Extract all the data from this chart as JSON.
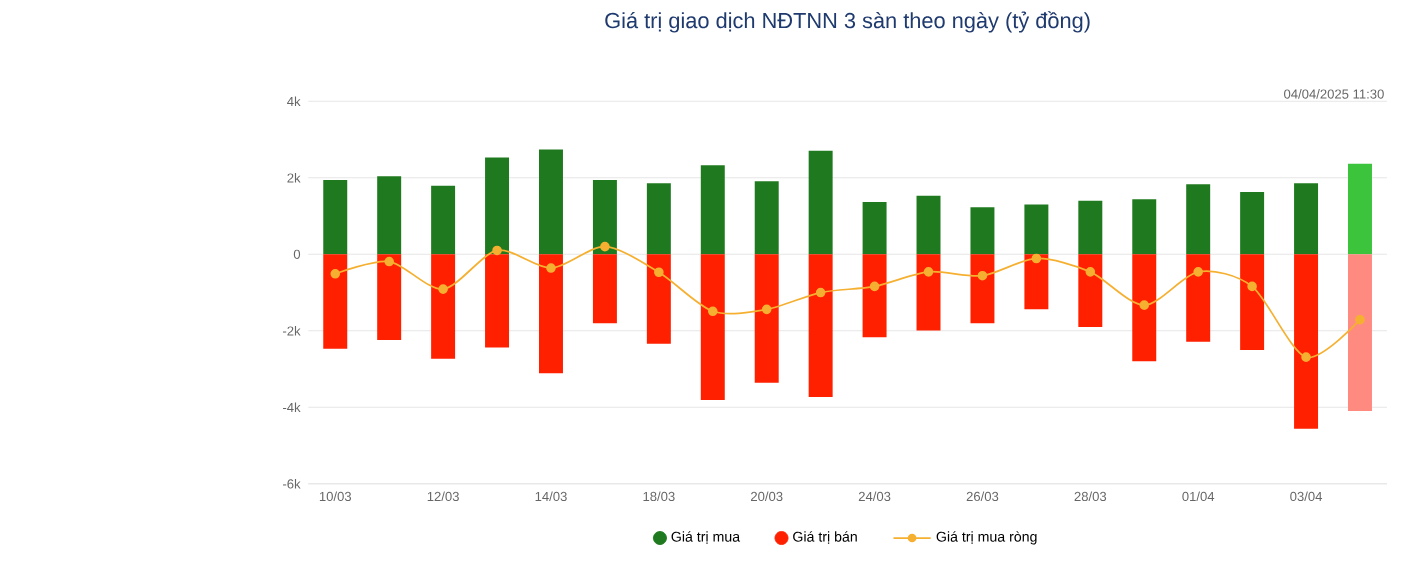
{
  "chart_data": {
    "type": "bar",
    "title": "Giá trị giao dịch NĐTNN 3 sàn theo ngày (tỷ đồng)",
    "annotations": [
      "04/04/2025 11:30"
    ],
    "categories": [
      "10/03",
      null,
      "12/03",
      null,
      "14/03",
      null,
      "18/03",
      null,
      "20/03",
      null,
      "24/03",
      null,
      "26/03",
      null,
      "28/03",
      null,
      "01/04",
      null,
      "03/04",
      null
    ],
    "series": [
      {
        "name": "Giá trị mua",
        "color": "#1f7a1f",
        "colors": [
          "#1f7a1f",
          "#1f7a1f",
          "#1f7a1f",
          "#1f7a1f",
          "#1f7a1f",
          "#1f7a1f",
          "#1f7a1f",
          "#1f7a1f",
          "#1f7a1f",
          "#1f7a1f",
          "#1f7a1f",
          "#1f7a1f",
          "#1f7a1f",
          "#1f7a1f",
          "#1f7a1f",
          "#1f7a1f",
          "#1f7a1f",
          "#1f7a1f",
          "#1f7a1f",
          "#3cc43c"
        ],
        "values": [
          1940,
          2040,
          1790,
          2530,
          2740,
          1940,
          1860,
          2330,
          1910,
          2710,
          1370,
          1530,
          1230,
          1300,
          1400,
          1440,
          1830,
          1630,
          1860,
          2370
        ]
      },
      {
        "name": "Giá trị bán",
        "color": "#ff2000",
        "colors": [
          "#ff2000",
          "#ff2000",
          "#ff2000",
          "#ff2000",
          "#ff2000",
          "#ff2000",
          "#ff2000",
          "#ff2000",
          "#ff2000",
          "#ff2000",
          "#ff2000",
          "#ff2000",
          "#ff2000",
          "#ff2000",
          "#ff2000",
          "#ff2000",
          "#ff2000",
          "#ff2000",
          "#ff2000",
          "#ff8a80"
        ],
        "values": [
          -2470,
          -2240,
          -2730,
          -2440,
          -3110,
          -1800,
          -2340,
          -3810,
          -3360,
          -3730,
          -2170,
          -1990,
          -1800,
          -1440,
          -1900,
          -2800,
          -2290,
          -2500,
          -4560,
          -4100
        ]
      },
      {
        "name": "Giá trị mua ròng",
        "type": "line",
        "color": "#f5b031",
        "marker": "circle",
        "values": [
          -510,
          -190,
          -910,
          100,
          -360,
          200,
          -470,
          -1490,
          -1440,
          -1000,
          -840,
          -460,
          -560,
          -110,
          -460,
          -1330,
          -460,
          -840,
          -2690,
          -1710
        ]
      }
    ],
    "stacked": true,
    "ylim": [
      -6000,
      4000
    ],
    "yticks": [
      {
        "value": -6000,
        "label": "-6k"
      },
      {
        "value": -4000,
        "label": "-4k"
      },
      {
        "value": -2000,
        "label": "-2k"
      },
      {
        "value": 0,
        "label": "0"
      },
      {
        "value": 2000,
        "label": "2k"
      },
      {
        "value": 4000,
        "label": "4k"
      }
    ],
    "grid": "y",
    "legend": "bottom"
  }
}
